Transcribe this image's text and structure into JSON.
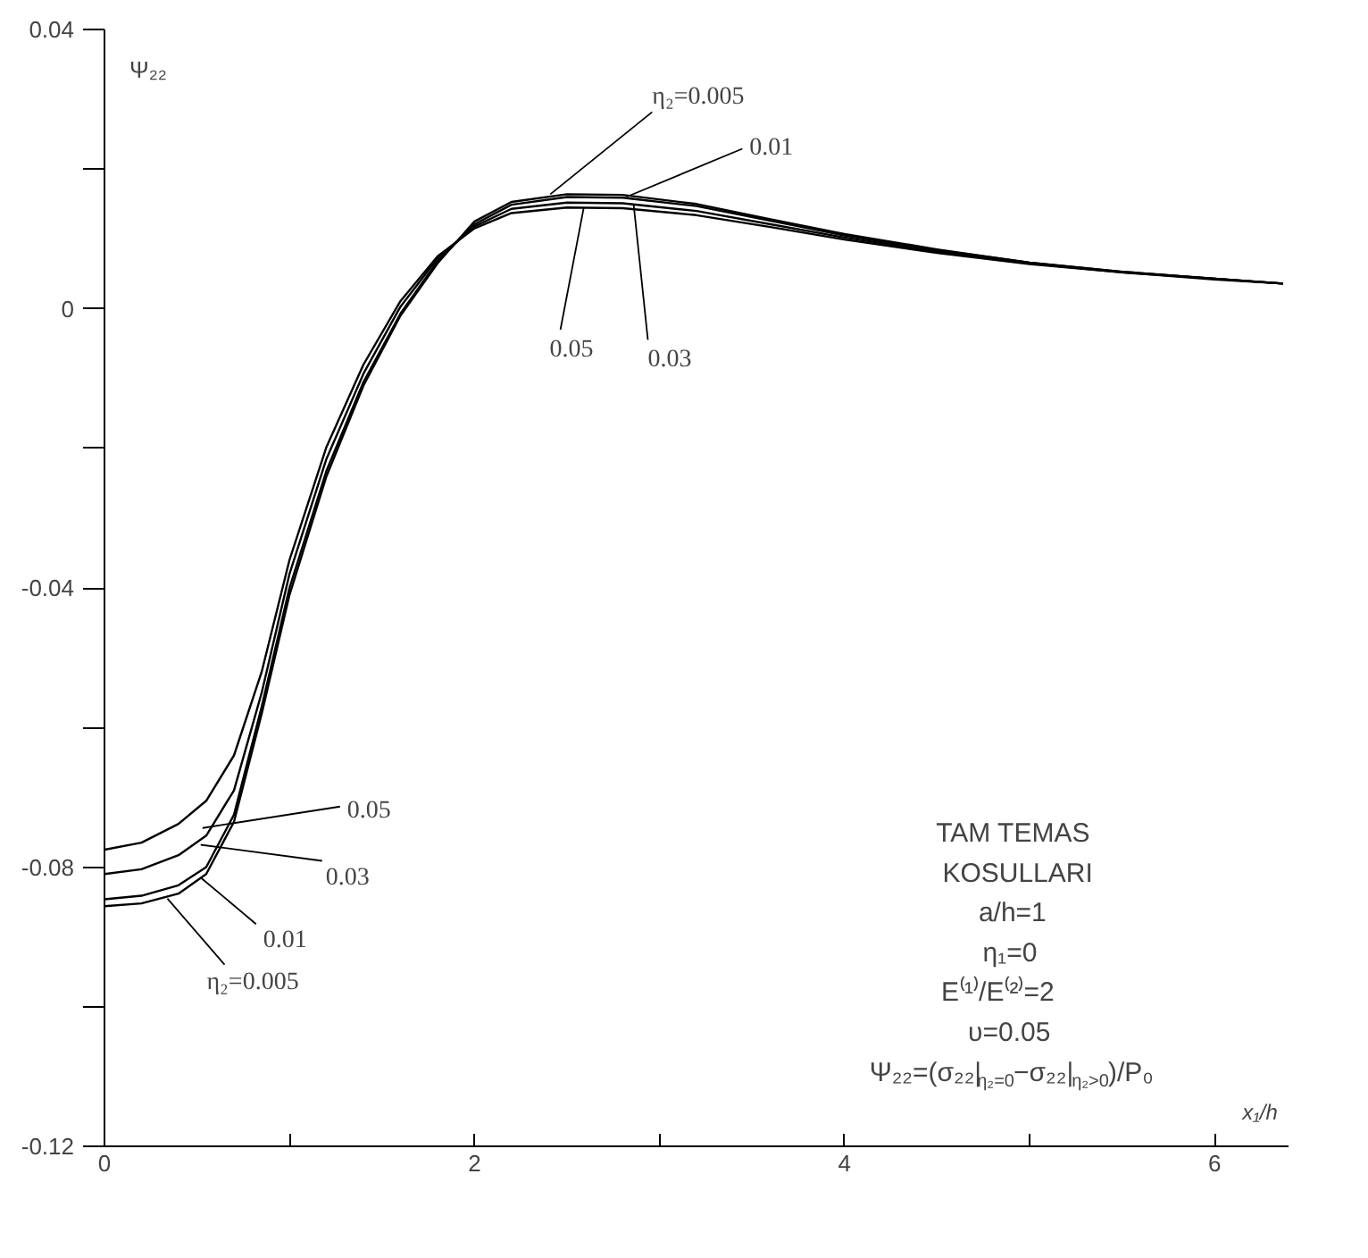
{
  "chart_data": {
    "type": "line",
    "xlabel": "x₁/h",
    "ylabel": "Ψ₂₂",
    "xlim": [
      0,
      6.4
    ],
    "ylim": [
      -0.12,
      0.04
    ],
    "xticks": [
      0,
      {
        "value": 1,
        "label": null
      },
      2,
      {
        "value": 3,
        "label": null
      },
      4,
      {
        "value": 5,
        "label": null
      },
      6
    ],
    "yticks": [
      -0.12,
      {
        "value": -0.1,
        "label": null
      },
      -0.08,
      {
        "value": -0.06,
        "label": null
      },
      -0.04,
      {
        "value": -0.02,
        "label": null
      },
      0,
      {
        "value": 0.02,
        "label": null
      },
      0.04
    ],
    "grid": false,
    "marker": "none",
    "line_style": "solid",
    "x": [
      0,
      0.2,
      0.4,
      0.55,
      0.7,
      0.85,
      1.0,
      1.2,
      1.4,
      1.6,
      1.8,
      2.0,
      2.2,
      2.5,
      2.8,
      3.2,
      3.6,
      4.0,
      4.5,
      5.0,
      5.5,
      6.0,
      6.37
    ],
    "series": [
      {
        "color": "#000000",
        "values": [
          -0.0856,
          -0.0852,
          -0.0838,
          -0.081,
          -0.0735,
          -0.058,
          -0.041,
          -0.024,
          -0.011,
          -0.001,
          0.0065,
          0.0125,
          0.0153,
          0.0164,
          0.0163,
          0.015,
          0.0128,
          0.0107,
          0.0085,
          0.0066,
          0.0053,
          0.0043,
          0.0036
        ]
      },
      {
        "color": "#000000",
        "values": [
          -0.0846,
          -0.0841,
          -0.0826,
          -0.08,
          -0.0725,
          -0.057,
          -0.04,
          -0.0232,
          -0.0105,
          -0.0007,
          0.0068,
          0.0121,
          0.0149,
          0.016,
          0.0159,
          0.0147,
          0.0126,
          0.0105,
          0.0084,
          0.0066,
          0.0053,
          0.0043,
          0.0036
        ]
      },
      {
        "color": "#000000",
        "values": [
          -0.081,
          -0.0803,
          -0.0783,
          -0.0755,
          -0.069,
          -0.055,
          -0.038,
          -0.0215,
          -0.0093,
          0.0003,
          0.0072,
          0.0118,
          0.0143,
          0.0152,
          0.0151,
          0.014,
          0.0121,
          0.0102,
          0.0082,
          0.0065,
          0.0052,
          0.0043,
          0.0036
        ]
      },
      {
        "color": "#000000",
        "values": [
          -0.0775,
          -0.0765,
          -0.0738,
          -0.0705,
          -0.064,
          -0.052,
          -0.036,
          -0.0198,
          -0.008,
          0.0011,
          0.0075,
          0.0115,
          0.0137,
          0.0145,
          0.0144,
          0.0134,
          0.0117,
          0.0099,
          0.008,
          0.0064,
          0.0052,
          0.0042,
          0.0036
        ]
      }
    ],
    "annotations": [
      {
        "text": "η₂=0.005",
        "x": 2.41,
        "y": 0.0164
      },
      {
        "text": "0.01",
        "x": 2.82,
        "y": 0.016
      },
      {
        "text": "0.05",
        "x": 2.59,
        "y": 0.0144
      },
      {
        "text": "0.03",
        "x": 2.86,
        "y": 0.015
      },
      {
        "text": "0.05",
        "x": 0.53,
        "y": -0.0744
      },
      {
        "text": "0.03",
        "x": 0.52,
        "y": -0.0768
      },
      {
        "text": "0.01",
        "x": 0.52,
        "y": -0.0815
      },
      {
        "text": "η₂=0.005",
        "x": 0.34,
        "y": -0.0845
      },
      "TAM TEMAS",
      "KOSULLARI",
      "a/h=1",
      "η₁=0",
      "E⁽¹⁾/E⁽²⁾=2",
      "υ=0.05",
      "Ψ₂₂=(σ₂₂|$_{η₂=0}$−σ₂₂|$_{η₂>0}$)/P₀"
    ]
  }
}
